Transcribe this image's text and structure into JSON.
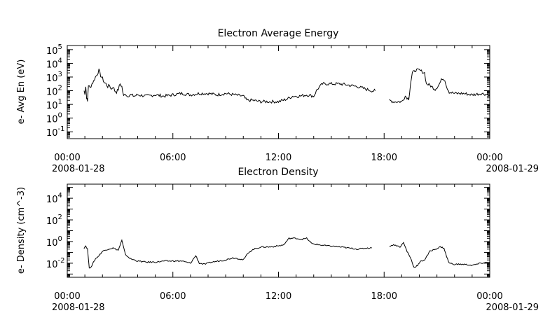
{
  "chart_data": [
    {
      "type": "line",
      "title": "Electron Average Energy",
      "ylabel": "e- Avg En (eV)",
      "xlabel": "",
      "yscale": "log",
      "ylim_exponent": [
        -1.5,
        5.3
      ],
      "ytick_exponents": [
        -1,
        0,
        1,
        2,
        3,
        4,
        5
      ],
      "ytick_labels": [
        "10",
        "10",
        "10",
        "10",
        "10",
        "10",
        "10"
      ],
      "ytick_superscripts": [
        "-1",
        "0",
        "1",
        "2",
        "3",
        "4",
        "5"
      ],
      "xlim_hours": [
        0,
        24
      ],
      "xticks": [
        {
          "hour": 0,
          "label": "00:00",
          "date": "2008-01-28"
        },
        {
          "hour": 6,
          "label": "06:00",
          "date": ""
        },
        {
          "hour": 12,
          "label": "12:00",
          "date": ""
        },
        {
          "hour": 18,
          "label": "18:00",
          "date": ""
        },
        {
          "hour": 24,
          "label": "00:00",
          "date": "2008-01-29"
        }
      ],
      "grid": false,
      "segments": [
        [
          [
            0.95,
            2.0
          ],
          [
            1.0,
            1.8
          ],
          [
            1.05,
            2.3
          ],
          [
            1.1,
            1.5
          ],
          [
            1.15,
            1.2
          ],
          [
            1.2,
            2.4
          ],
          [
            1.3,
            2.2
          ],
          [
            1.4,
            2.5
          ],
          [
            1.5,
            2.7
          ],
          [
            1.6,
            3.0
          ],
          [
            1.7,
            3.2
          ],
          [
            1.8,
            3.5
          ],
          [
            1.9,
            3.1
          ],
          [
            2.0,
            2.9
          ],
          [
            2.1,
            2.6
          ],
          [
            2.2,
            2.5
          ],
          [
            2.3,
            2.3
          ],
          [
            2.4,
            2.4
          ],
          [
            2.5,
            2.1
          ],
          [
            2.6,
            2.3
          ],
          [
            2.7,
            2.0
          ],
          [
            2.8,
            1.9
          ],
          [
            2.9,
            2.1
          ],
          [
            3.0,
            2.5
          ],
          [
            3.1,
            2.3
          ],
          [
            3.2,
            1.6
          ],
          [
            3.3,
            1.8
          ],
          [
            3.4,
            1.6
          ],
          [
            3.6,
            1.7
          ],
          [
            3.8,
            1.6
          ],
          [
            4.0,
            1.7
          ],
          [
            4.5,
            1.6
          ],
          [
            5.0,
            1.7
          ],
          [
            5.5,
            1.6
          ],
          [
            6.0,
            1.7
          ],
          [
            6.5,
            1.8
          ],
          [
            7.0,
            1.7
          ],
          [
            7.5,
            1.8
          ],
          [
            8.0,
            1.8
          ],
          [
            8.5,
            1.7
          ],
          [
            9.0,
            1.8
          ],
          [
            9.5,
            1.7
          ],
          [
            10.0,
            1.6
          ],
          [
            10.2,
            1.3
          ],
          [
            10.5,
            1.3
          ],
          [
            11.0,
            1.2
          ],
          [
            11.5,
            1.2
          ],
          [
            12.0,
            1.2
          ],
          [
            12.5,
            1.4
          ],
          [
            12.8,
            1.6
          ],
          [
            13.2,
            1.6
          ],
          [
            13.6,
            1.7
          ],
          [
            14.0,
            1.6
          ],
          [
            14.2,
            2.1
          ],
          [
            14.5,
            2.5
          ],
          [
            15.0,
            2.5
          ],
          [
            15.5,
            2.5
          ],
          [
            16.0,
            2.4
          ],
          [
            16.5,
            2.3
          ],
          [
            17.0,
            2.1
          ],
          [
            17.3,
            2.0
          ],
          [
            17.5,
            2.0
          ]
        ],
        [
          [
            18.3,
            1.3
          ],
          [
            18.5,
            1.2
          ],
          [
            18.8,
            1.2
          ],
          [
            19.0,
            1.2
          ],
          [
            19.2,
            1.6
          ],
          [
            19.4,
            1.4
          ],
          [
            19.5,
            2.5
          ],
          [
            19.6,
            3.3
          ],
          [
            19.8,
            3.5
          ],
          [
            20.0,
            3.5
          ],
          [
            20.3,
            3.3
          ],
          [
            20.4,
            2.5
          ],
          [
            20.6,
            2.4
          ],
          [
            20.8,
            2.2
          ],
          [
            20.9,
            2.1
          ],
          [
            21.1,
            2.4
          ],
          [
            21.3,
            2.9
          ],
          [
            21.45,
            2.8
          ],
          [
            21.55,
            2.3
          ],
          [
            21.7,
            1.9
          ],
          [
            22.0,
            1.8
          ],
          [
            22.5,
            1.8
          ],
          [
            23.0,
            1.7
          ],
          [
            23.5,
            1.8
          ],
          [
            24.0,
            1.7
          ]
        ]
      ]
    },
    {
      "type": "line",
      "title": "Electron Density",
      "ylabel": "e- Density (cm^-3)",
      "xlabel": "",
      "yscale": "log",
      "ylim_exponent": [
        -3.3,
        5.3
      ],
      "ytick_exponents": [
        -2,
        0,
        2,
        4
      ],
      "ytick_labels": [
        "10",
        "10",
        "10",
        "10"
      ],
      "ytick_superscripts": [
        "-2",
        "0",
        "2",
        "4"
      ],
      "xlim_hours": [
        0,
        24
      ],
      "xticks": [
        {
          "hour": 0,
          "label": "00:00",
          "date": "2008-01-28"
        },
        {
          "hour": 6,
          "label": "06:00",
          "date": ""
        },
        {
          "hour": 12,
          "label": "12:00",
          "date": ""
        },
        {
          "hour": 18,
          "label": "18:00",
          "date": ""
        },
        {
          "hour": 24,
          "label": "00:00",
          "date": "2008-01-29"
        }
      ],
      "grid": false,
      "segments": [
        [
          [
            0.95,
            -0.6
          ],
          [
            1.05,
            -0.4
          ],
          [
            1.15,
            -0.7
          ],
          [
            1.25,
            -2.5
          ],
          [
            1.4,
            -2.2
          ],
          [
            1.6,
            -1.6
          ],
          [
            1.8,
            -1.3
          ],
          [
            2.0,
            -0.9
          ],
          [
            2.3,
            -0.7
          ],
          [
            2.6,
            -0.6
          ],
          [
            2.9,
            -0.8
          ],
          [
            3.1,
            0.1
          ],
          [
            3.3,
            -1.2
          ],
          [
            3.6,
            -1.6
          ],
          [
            4.0,
            -1.8
          ],
          [
            4.5,
            -1.9
          ],
          [
            5.0,
            -1.9
          ],
          [
            5.5,
            -1.8
          ],
          [
            6.0,
            -1.8
          ],
          [
            6.5,
            -1.8
          ],
          [
            7.0,
            -2.0
          ],
          [
            7.3,
            -1.3
          ],
          [
            7.5,
            -2.0
          ],
          [
            7.8,
            -2.1
          ],
          [
            8.2,
            -1.9
          ],
          [
            8.6,
            -1.8
          ],
          [
            9.0,
            -1.7
          ],
          [
            9.4,
            -1.5
          ],
          [
            9.8,
            -1.6
          ],
          [
            10.0,
            -1.7
          ],
          [
            10.3,
            -1.0
          ],
          [
            10.6,
            -0.7
          ],
          [
            11.0,
            -0.5
          ],
          [
            11.5,
            -0.5
          ],
          [
            12.0,
            -0.4
          ],
          [
            12.3,
            -0.3
          ],
          [
            12.6,
            0.3
          ],
          [
            13.0,
            0.3
          ],
          [
            13.3,
            0.2
          ],
          [
            13.6,
            0.3
          ],
          [
            13.9,
            -0.2
          ],
          [
            14.3,
            -0.3
          ],
          [
            14.8,
            -0.4
          ],
          [
            15.5,
            -0.5
          ],
          [
            16.0,
            -0.6
          ],
          [
            16.5,
            -0.7
          ],
          [
            17.0,
            -0.6
          ],
          [
            17.3,
            -0.6
          ]
        ],
        [
          [
            18.3,
            -0.4
          ],
          [
            18.6,
            -0.3
          ],
          [
            18.9,
            -0.5
          ],
          [
            19.1,
            -0.1
          ],
          [
            19.3,
            -0.9
          ],
          [
            19.5,
            -1.5
          ],
          [
            19.7,
            -2.4
          ],
          [
            19.9,
            -2.2
          ],
          [
            20.1,
            -1.8
          ],
          [
            20.3,
            -1.7
          ],
          [
            20.6,
            -0.9
          ],
          [
            20.9,
            -0.7
          ],
          [
            21.2,
            -0.5
          ],
          [
            21.4,
            -0.6
          ],
          [
            21.55,
            -1.4
          ],
          [
            21.7,
            -2.0
          ],
          [
            22.0,
            -2.1
          ],
          [
            22.5,
            -2.1
          ],
          [
            23.0,
            -2.2
          ],
          [
            23.5,
            -2.0
          ],
          [
            24.0,
            -1.9
          ]
        ]
      ]
    }
  ]
}
